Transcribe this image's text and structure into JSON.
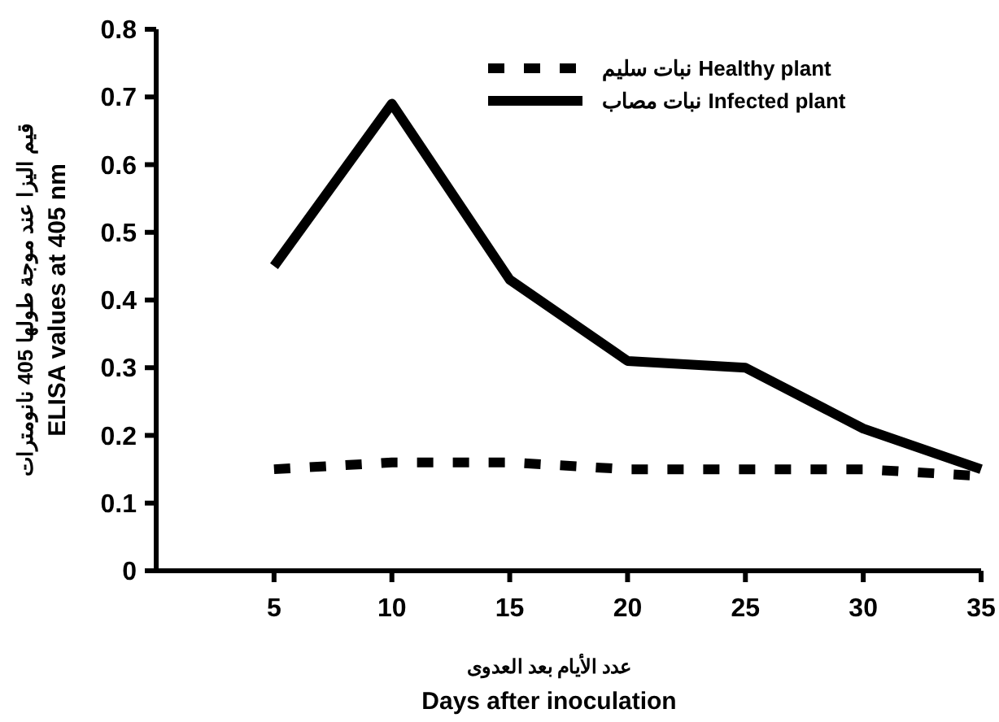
{
  "chart_data": {
    "type": "line",
    "xlabel": "عدد الأيام بعد العدوى\nDays after inoculation",
    "ylabel": "قيم اليزا عند موجة طولها 405 نانومترات\nELISA values at 405 nm",
    "x": [
      5,
      10,
      15,
      20,
      25,
      30,
      35
    ],
    "xlim": [
      0,
      35
    ],
    "xticks": [
      5,
      10,
      15,
      20,
      25,
      30,
      35
    ],
    "ylim": [
      0,
      0.8
    ],
    "yticks": [
      0,
      0.1,
      0.2,
      0.3,
      0.4,
      0.5,
      0.6,
      0.7,
      0.8
    ],
    "series": [
      {
        "name": "نبات سليم Healthy plant",
        "color": "#000000",
        "line_style": "dashed",
        "values": [
          0.15,
          0.16,
          0.16,
          0.15,
          0.15,
          0.15,
          0.14
        ]
      },
      {
        "name": "نبات مصاب Infected plant",
        "color": "#000000",
        "line_style": "solid",
        "values": [
          0.45,
          0.69,
          0.43,
          0.31,
          0.3,
          0.21,
          0.15
        ]
      }
    ],
    "legend": "top right",
    "grid": false,
    "marker": "none"
  }
}
